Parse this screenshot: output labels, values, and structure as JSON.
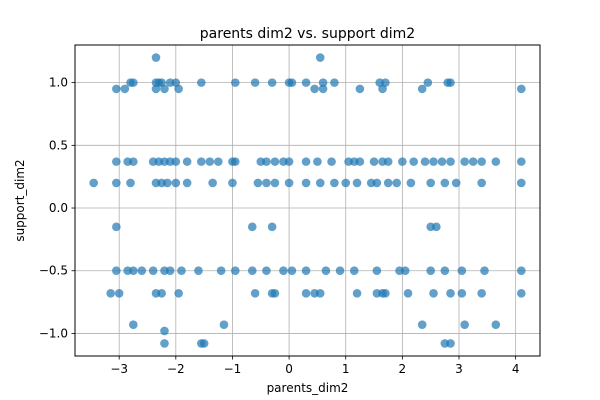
{
  "chart_data": {
    "type": "scatter",
    "title": "parents dim2 vs. support dim2",
    "xlabel": "parents_dim2",
    "ylabel": "support_dim2",
    "xlim": [
      -3.78,
      4.43
    ],
    "ylim": [
      -1.18,
      1.3
    ],
    "xticks": [
      -3,
      -2,
      -1,
      0,
      1,
      2,
      3,
      4
    ],
    "yticks": [
      -1.0,
      -0.5,
      0.0,
      0.5,
      1.0
    ],
    "xtick_labels": [
      "−3",
      "−2",
      "−1",
      "0",
      "1",
      "2",
      "3",
      "4"
    ],
    "ytick_labels": [
      "−1.0",
      "−0.5",
      "0.0",
      "0.5",
      "1.0"
    ],
    "grid": true,
    "marker_color": "#1f77b4",
    "points": [
      [
        -3.45,
        0.2
      ],
      [
        -3.05,
        0.95
      ],
      [
        -2.9,
        0.95
      ],
      [
        -2.8,
        1.0
      ],
      [
        -2.75,
        1.0
      ],
      [
        -2.35,
        1.0
      ],
      [
        -2.3,
        1.0
      ],
      [
        -2.25,
        1.0
      ],
      [
        -2.35,
        0.95
      ],
      [
        -2.2,
        0.95
      ],
      [
        -2.1,
        1.0
      ],
      [
        -2.0,
        1.0
      ],
      [
        -1.95,
        0.95
      ],
      [
        -1.55,
        1.0
      ],
      [
        -0.95,
        1.0
      ],
      [
        -0.6,
        1.0
      ],
      [
        -0.3,
        1.0
      ],
      [
        0.0,
        1.0
      ],
      [
        0.05,
        1.0
      ],
      [
        0.3,
        1.0
      ],
      [
        0.45,
        0.95
      ],
      [
        0.6,
        0.95
      ],
      [
        0.6,
        1.0
      ],
      [
        0.8,
        1.0
      ],
      [
        1.25,
        0.95
      ],
      [
        1.6,
        1.0
      ],
      [
        1.65,
        0.95
      ],
      [
        1.7,
        1.0
      ],
      [
        2.35,
        0.95
      ],
      [
        2.45,
        1.0
      ],
      [
        2.8,
        1.0
      ],
      [
        2.85,
        1.0
      ],
      [
        4.1,
        0.95
      ],
      [
        -2.35,
        1.2
      ],
      [
        0.55,
        1.2
      ],
      [
        -3.05,
        0.37
      ],
      [
        -2.85,
        0.37
      ],
      [
        -2.75,
        0.37
      ],
      [
        -2.4,
        0.37
      ],
      [
        -2.3,
        0.37
      ],
      [
        -2.2,
        0.37
      ],
      [
        -2.1,
        0.37
      ],
      [
        -2.0,
        0.37
      ],
      [
        -1.8,
        0.37
      ],
      [
        -1.55,
        0.37
      ],
      [
        -1.4,
        0.37
      ],
      [
        -1.25,
        0.37
      ],
      [
        -1.0,
        0.37
      ],
      [
        -0.95,
        0.37
      ],
      [
        -0.5,
        0.37
      ],
      [
        -0.4,
        0.37
      ],
      [
        -0.25,
        0.37
      ],
      [
        -0.1,
        0.37
      ],
      [
        0.0,
        0.37
      ],
      [
        0.3,
        0.37
      ],
      [
        0.5,
        0.37
      ],
      [
        0.75,
        0.37
      ],
      [
        1.05,
        0.37
      ],
      [
        1.15,
        0.37
      ],
      [
        1.25,
        0.37
      ],
      [
        1.5,
        0.37
      ],
      [
        1.65,
        0.37
      ],
      [
        1.75,
        0.37
      ],
      [
        2.0,
        0.37
      ],
      [
        2.2,
        0.37
      ],
      [
        2.4,
        0.37
      ],
      [
        2.55,
        0.37
      ],
      [
        2.7,
        0.37
      ],
      [
        2.85,
        0.37
      ],
      [
        3.1,
        0.37
      ],
      [
        3.25,
        0.37
      ],
      [
        3.4,
        0.37
      ],
      [
        3.65,
        0.37
      ],
      [
        4.1,
        0.37
      ],
      [
        -3.05,
        0.2
      ],
      [
        -2.8,
        0.2
      ],
      [
        -2.35,
        0.2
      ],
      [
        -2.25,
        0.2
      ],
      [
        -2.15,
        0.2
      ],
      [
        -2.0,
        0.2
      ],
      [
        -1.8,
        0.2
      ],
      [
        -1.35,
        0.2
      ],
      [
        -1.0,
        0.2
      ],
      [
        -0.55,
        0.2
      ],
      [
        -0.4,
        0.2
      ],
      [
        -0.25,
        0.2
      ],
      [
        0.0,
        0.2
      ],
      [
        0.3,
        0.2
      ],
      [
        0.55,
        0.2
      ],
      [
        0.8,
        0.2
      ],
      [
        1.0,
        0.2
      ],
      [
        1.2,
        0.2
      ],
      [
        1.45,
        0.2
      ],
      [
        1.55,
        0.2
      ],
      [
        1.75,
        0.2
      ],
      [
        1.9,
        0.2
      ],
      [
        2.15,
        0.2
      ],
      [
        2.5,
        0.2
      ],
      [
        2.75,
        0.2
      ],
      [
        2.95,
        0.2
      ],
      [
        3.4,
        0.2
      ],
      [
        4.1,
        0.2
      ],
      [
        -3.05,
        -0.15
      ],
      [
        -0.65,
        -0.15
      ],
      [
        -0.3,
        -0.15
      ],
      [
        2.5,
        -0.15
      ],
      [
        2.6,
        -0.15
      ],
      [
        -3.05,
        -0.5
      ],
      [
        -2.85,
        -0.5
      ],
      [
        -2.75,
        -0.5
      ],
      [
        -2.6,
        -0.5
      ],
      [
        -2.4,
        -0.5
      ],
      [
        -2.2,
        -0.5
      ],
      [
        -2.1,
        -0.5
      ],
      [
        -1.9,
        -0.5
      ],
      [
        -1.6,
        -0.5
      ],
      [
        -1.2,
        -0.5
      ],
      [
        -0.95,
        -0.5
      ],
      [
        -0.65,
        -0.5
      ],
      [
        -0.4,
        -0.5
      ],
      [
        -0.1,
        -0.5
      ],
      [
        0.05,
        -0.5
      ],
      [
        0.3,
        -0.5
      ],
      [
        0.65,
        -0.5
      ],
      [
        0.9,
        -0.5
      ],
      [
        1.15,
        -0.5
      ],
      [
        1.55,
        -0.5
      ],
      [
        1.95,
        -0.5
      ],
      [
        2.05,
        -0.5
      ],
      [
        2.5,
        -0.5
      ],
      [
        2.75,
        -0.5
      ],
      [
        3.05,
        -0.5
      ],
      [
        3.45,
        -0.5
      ],
      [
        4.1,
        -0.5
      ],
      [
        -3.15,
        -0.68
      ],
      [
        -3.0,
        -0.68
      ],
      [
        -2.35,
        -0.68
      ],
      [
        -2.25,
        -0.68
      ],
      [
        -1.95,
        -0.68
      ],
      [
        -0.6,
        -0.68
      ],
      [
        -0.3,
        -0.68
      ],
      [
        -0.25,
        -0.68
      ],
      [
        0.3,
        -0.68
      ],
      [
        0.45,
        -0.68
      ],
      [
        0.55,
        -0.68
      ],
      [
        1.2,
        -0.68
      ],
      [
        1.55,
        -0.68
      ],
      [
        1.65,
        -0.68
      ],
      [
        1.7,
        -0.68
      ],
      [
        2.1,
        -0.68
      ],
      [
        2.55,
        -0.68
      ],
      [
        2.85,
        -0.68
      ],
      [
        3.05,
        -0.68
      ],
      [
        3.4,
        -0.68
      ],
      [
        4.1,
        -0.68
      ],
      [
        -2.75,
        -0.93
      ],
      [
        -1.15,
        -0.93
      ],
      [
        2.35,
        -0.93
      ],
      [
        3.1,
        -0.93
      ],
      [
        3.65,
        -0.93
      ],
      [
        -2.2,
        -0.98
      ],
      [
        -2.2,
        -1.08
      ],
      [
        -1.55,
        -1.08
      ],
      [
        -1.5,
        -1.08
      ],
      [
        2.75,
        -1.08
      ],
      [
        2.85,
        -1.08
      ]
    ]
  }
}
